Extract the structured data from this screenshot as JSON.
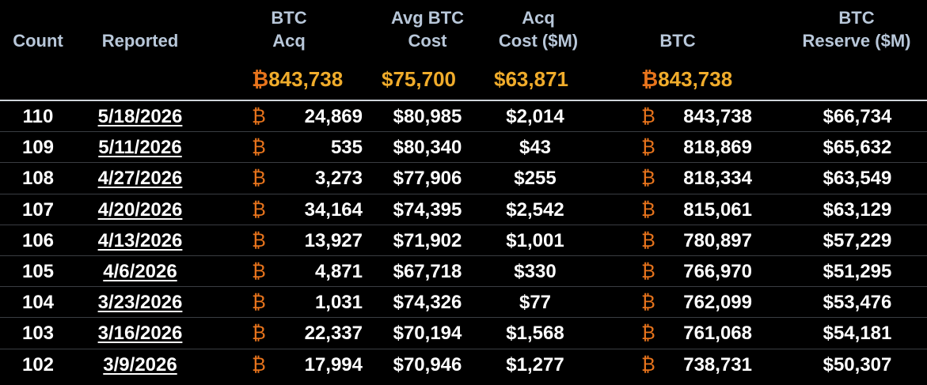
{
  "header": {
    "count": "Count",
    "reported": "Reported",
    "btc_acq": [
      "BTC",
      "Acq"
    ],
    "avg_btc_cost": [
      "Avg BTC",
      "Cost"
    ],
    "acq_cost": [
      "Acq",
      "Cost ($M)"
    ],
    "btc": "BTC",
    "btc_reserve": [
      "BTC",
      "Reserve ($M)"
    ]
  },
  "totals": {
    "btc_symbol": "₿",
    "btc_acq": "843,738",
    "avg_btc_cost": "$75,700",
    "acq_cost": "$63,871",
    "btc": "843,738"
  },
  "rows": [
    {
      "count": "110",
      "reported": "5/18/2026",
      "btc_symbol": "₿",
      "btc_acq": "24,869",
      "avg_btc_cost": "$80,985",
      "acq_cost": "$2,014",
      "btc": "843,738",
      "btc_reserve": "$66,734"
    },
    {
      "count": "109",
      "reported": "5/11/2026",
      "btc_symbol": "₿",
      "btc_acq": "535",
      "avg_btc_cost": "$80,340",
      "acq_cost": "$43",
      "btc": "818,869",
      "btc_reserve": "$65,632"
    },
    {
      "count": "108",
      "reported": "4/27/2026",
      "btc_symbol": "₿",
      "btc_acq": "3,273",
      "avg_btc_cost": "$77,906",
      "acq_cost": "$255",
      "btc": "818,334",
      "btc_reserve": "$63,549"
    },
    {
      "count": "107",
      "reported": "4/20/2026",
      "btc_symbol": "₿",
      "btc_acq": "34,164",
      "avg_btc_cost": "$74,395",
      "acq_cost": "$2,542",
      "btc": "815,061",
      "btc_reserve": "$63,129"
    },
    {
      "count": "106",
      "reported": "4/13/2026",
      "btc_symbol": "₿",
      "btc_acq": "13,927",
      "avg_btc_cost": "$71,902",
      "acq_cost": "$1,001",
      "btc": "780,897",
      "btc_reserve": "$57,229"
    },
    {
      "count": "105",
      "reported": "4/6/2026",
      "btc_symbol": "₿",
      "btc_acq": "4,871",
      "avg_btc_cost": "$67,718",
      "acq_cost": "$330",
      "btc": "766,970",
      "btc_reserve": "$51,295"
    },
    {
      "count": "104",
      "reported": "3/23/2026",
      "btc_symbol": "₿",
      "btc_acq": "1,031",
      "avg_btc_cost": "$74,326",
      "acq_cost": "$77",
      "btc": "762,099",
      "btc_reserve": "$53,476"
    },
    {
      "count": "103",
      "reported": "3/16/2026",
      "btc_symbol": "₿",
      "btc_acq": "22,337",
      "avg_btc_cost": "$70,194",
      "acq_cost": "$1,568",
      "btc": "761,068",
      "btc_reserve": "$54,181"
    },
    {
      "count": "102",
      "reported": "3/9/2026",
      "btc_symbol": "₿",
      "btc_acq": "17,994",
      "avg_btc_cost": "$70,946",
      "acq_cost": "$1,277",
      "btc": "738,731",
      "btc_reserve": "$50,307"
    }
  ],
  "colors": {
    "header_text": "#b8c7d9",
    "totals_text": "#f0ac2b",
    "btc_symbol": "#e8741c",
    "background": "#000000"
  }
}
